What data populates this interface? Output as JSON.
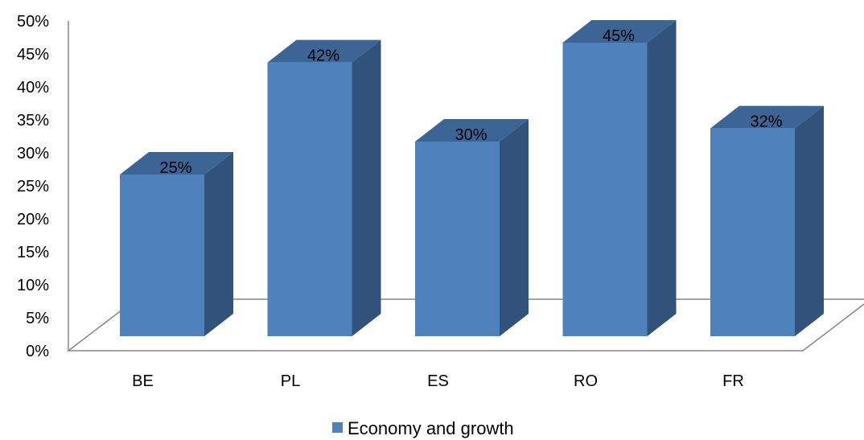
{
  "chart_data": {
    "type": "bar",
    "title": "",
    "xlabel": "",
    "ylabel": "",
    "categories": [
      "BE",
      "PL",
      "ES",
      "RO",
      "FR"
    ],
    "series": [
      {
        "name": "Economy and growth",
        "values": [
          25,
          42,
          30,
          45,
          32
        ],
        "color": "#4F81BD"
      }
    ],
    "data_labels": [
      "25%",
      "42%",
      "30%",
      "45%",
      "32%"
    ],
    "ylim": [
      0,
      50
    ],
    "y_ticks": [
      "0%",
      "5%",
      "10%",
      "15%",
      "20%",
      "25%",
      "30%",
      "35%",
      "40%",
      "45%",
      "50%"
    ],
    "grid": false,
    "style": "3d-column",
    "legend": {
      "position": "bottom",
      "entries": [
        "Economy and growth"
      ]
    },
    "colors": {
      "bar_front": "#4F81BD",
      "bar_top": "#3C6596",
      "bar_side": "#31527A",
      "axis": "#868686"
    }
  }
}
